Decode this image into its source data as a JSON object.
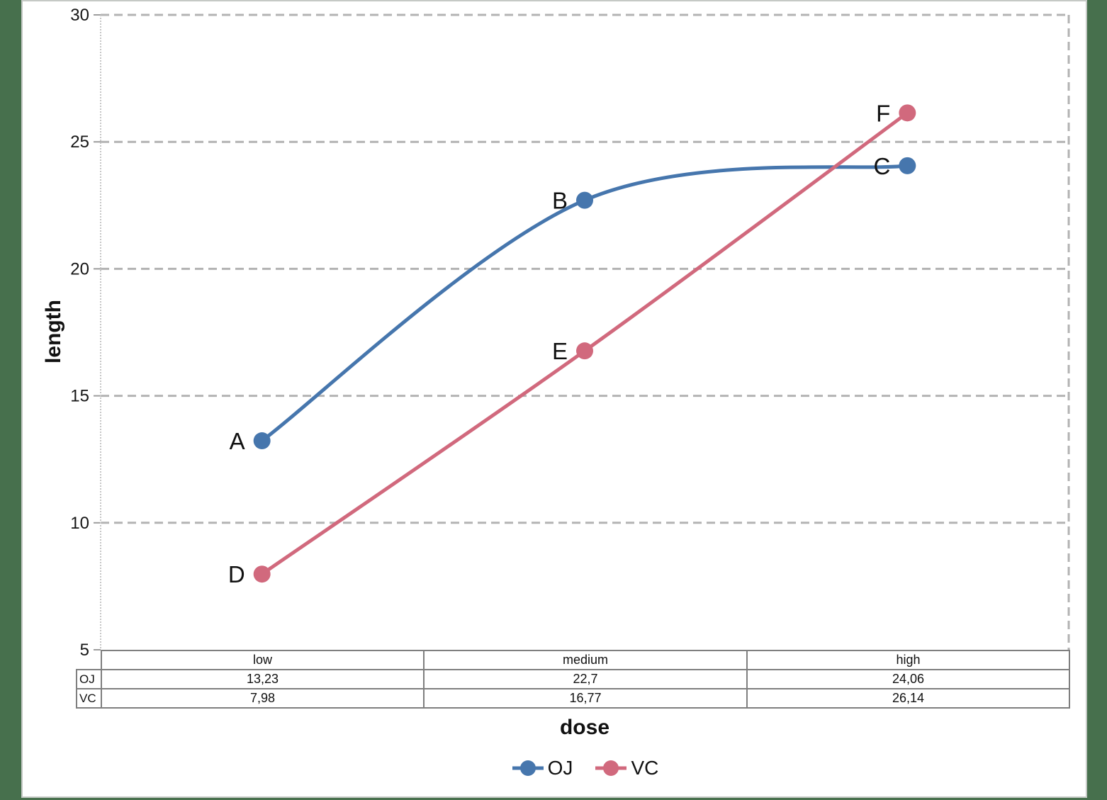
{
  "colors": {
    "surround_background": "#47704d",
    "page_background": "#ffffff",
    "page_border": "#c5c9c5",
    "gridline": "#b3b3b3",
    "table_border": "#7f7f7f",
    "oj_series": "#4676ad",
    "vc_series": "#d1697d"
  },
  "chart_data": {
    "type": "line",
    "title": "",
    "xlabel": "dose",
    "ylabel": "length",
    "categories": [
      "low",
      "medium",
      "high"
    ],
    "series": [
      {
        "name": "OJ",
        "color": "#4676ad",
        "values": [
          13.23,
          22.7,
          24.06
        ],
        "point_labels": [
          "A",
          "B",
          "C"
        ]
      },
      {
        "name": "VC",
        "color": "#d1697d",
        "values": [
          7.98,
          16.77,
          26.14
        ],
        "point_labels": [
          "D",
          "E",
          "F"
        ]
      }
    ],
    "ylim": [
      5,
      30
    ],
    "yticks": [
      5,
      10,
      15,
      20,
      25,
      30
    ],
    "grid": "horizontal-dashed",
    "smooth": true,
    "legend_position": "bottom"
  },
  "data_table": {
    "column_headers": [
      "low",
      "medium",
      "high"
    ],
    "rows": [
      {
        "label": "OJ",
        "values": [
          "13,23",
          "22,7",
          "24,06"
        ]
      },
      {
        "label": "VC",
        "values": [
          "7,98",
          "16,77",
          "26,14"
        ]
      }
    ]
  },
  "legend": {
    "items": [
      {
        "label": "OJ"
      },
      {
        "label": "VC"
      }
    ]
  }
}
